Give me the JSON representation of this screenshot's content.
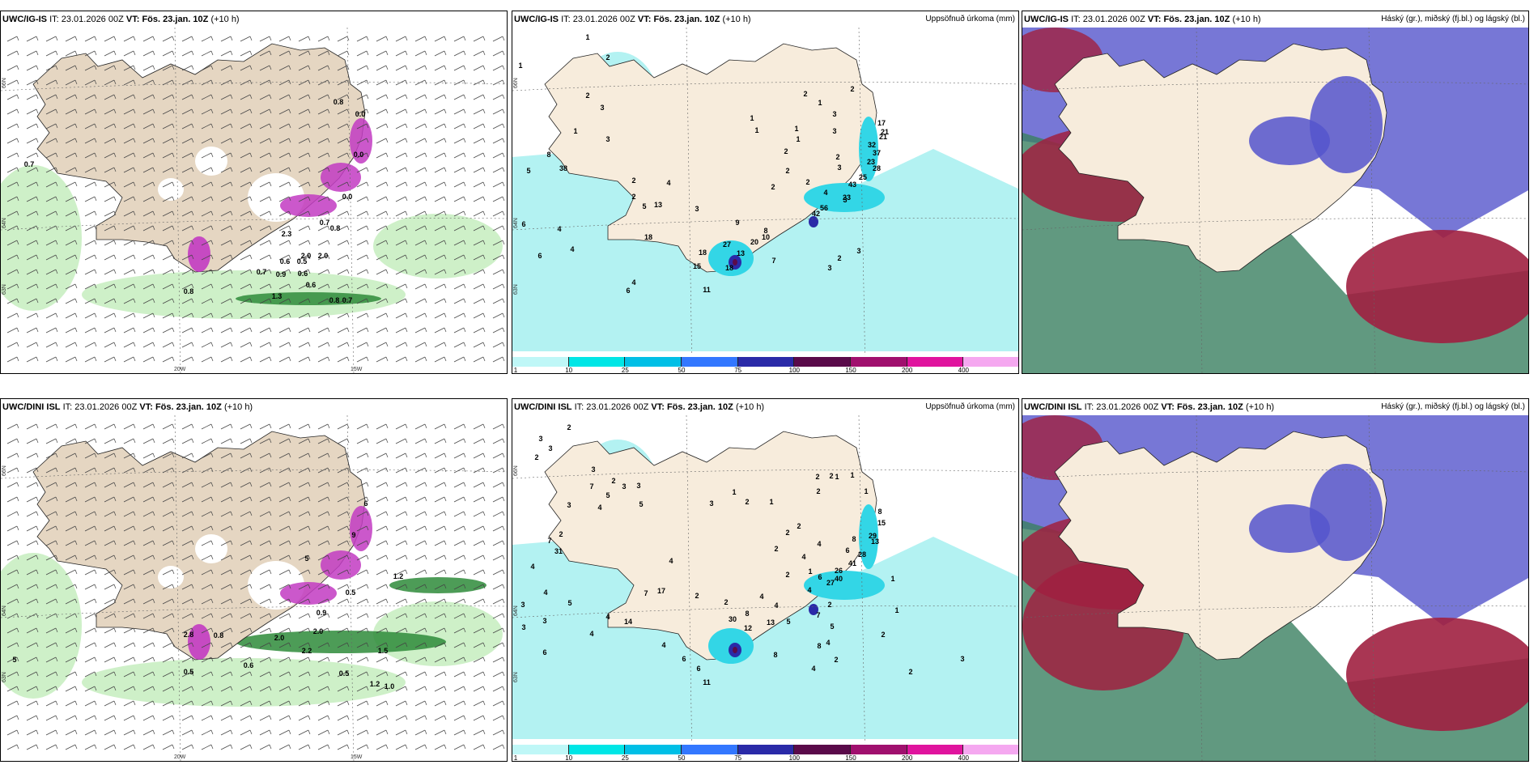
{
  "panels": [
    {
      "id": "p1",
      "model": "UWC/IG-IS",
      "it_label": "IT:",
      "it_value": "23.01.2026 00Z",
      "vt_label": "VT:",
      "vt_value": "Fös. 23.jan. 10Z",
      "lead": "(+10 h)",
      "right_title": ""
    },
    {
      "id": "p2",
      "model": "UWC/IG-IS",
      "it_label": "IT:",
      "it_value": "23.01.2026 00Z",
      "vt_label": "VT:",
      "vt_value": "Fös. 23.jan. 10Z",
      "lead": "(+10 h)",
      "right_title": "Uppsöfnuð úrkoma (mm)"
    },
    {
      "id": "p3",
      "model": "UWC/IG-IS",
      "it_label": "IT:",
      "it_value": "23.01.2026 00Z",
      "vt_label": "VT:",
      "vt_value": "Fös. 23.jan. 10Z",
      "lead": "(+10 h)",
      "right_title": "Háský (gr.), miðský (fj.bl.) og lágský (bl.)"
    },
    {
      "id": "p4",
      "model": "UWC/DINI ISL",
      "it_label": "IT:",
      "it_value": "23.01.2026 00Z",
      "vt_label": "VT:",
      "vt_value": "Fös. 23.jan. 10Z",
      "lead": "(+10 h)",
      "right_title": ""
    },
    {
      "id": "p5",
      "model": "UWC/DINI ISL",
      "it_label": "IT:",
      "it_value": "23.01.2026 00Z",
      "vt_label": "VT:",
      "vt_value": "Fös. 23.jan. 10Z",
      "lead": "(+10 h)",
      "right_title": "Uppsöfnuð úrkoma (mm)"
    },
    {
      "id": "p6",
      "model": "UWC/DINI ISL",
      "it_label": "IT:",
      "it_value": "23.01.2026 00Z",
      "vt_label": "VT:",
      "vt_value": "Fös. 23.jan. 10Z",
      "lead": "(+10 h)",
      "right_title": "Háský (gr.), miðský (fj.bl.) og lágský (bl.)"
    }
  ],
  "grid_labels": {
    "lat_66": "66N",
    "lat_64": "64N",
    "lat_63": "63N",
    "lon_20": "20W",
    "lon_15": "15W"
  },
  "colorbar": {
    "ticks": [
      "1",
      "10",
      "25",
      "50",
      "75",
      "100",
      "150",
      "200",
      "400"
    ],
    "colors": [
      "#bff7f7",
      "#00e6e6",
      "#00bfe6",
      "#3377ff",
      "#2a2aa8",
      "#5a0a4a",
      "#a0106e",
      "#e0149e",
      "#f5a8f0"
    ]
  },
  "colors": {
    "land": "#f7ecdc",
    "land_wind": "#e5d6c2",
    "precip_light": "#b3f2f2",
    "precip_med": "#33d6e6",
    "green_light": "#c9eec2",
    "green_dark": "#2e8b3a",
    "magenta": "#c23bc2",
    "cloud_red": "#a02040",
    "cloud_blue": "#5555cc",
    "cloud_green": "#3a8060"
  },
  "labels": {
    "p1": [
      {
        "x": 35,
        "y": 172,
        "t": "0.7"
      },
      {
        "x": 232,
        "y": 329,
        "t": "0.8"
      },
      {
        "x": 322,
        "y": 305,
        "t": "0.7"
      },
      {
        "x": 346,
        "y": 308,
        "t": "0.9"
      },
      {
        "x": 373,
        "y": 307,
        "t": "0.6"
      },
      {
        "x": 383,
        "y": 321,
        "t": "0.6"
      },
      {
        "x": 351,
        "y": 292,
        "t": "0.6"
      },
      {
        "x": 372,
        "y": 292,
        "t": "0.5"
      },
      {
        "x": 398,
        "y": 285,
        "t": "2.0"
      },
      {
        "x": 377,
        "y": 285,
        "t": "2.0"
      },
      {
        "x": 400,
        "y": 244,
        "t": "0.7"
      },
      {
        "x": 413,
        "y": 251,
        "t": "0.8"
      },
      {
        "x": 428,
        "y": 212,
        "t": "0.0"
      },
      {
        "x": 442,
        "y": 160,
        "t": "0.0"
      },
      {
        "x": 417,
        "y": 95,
        "t": "0.8"
      },
      {
        "x": 444,
        "y": 110,
        "t": "0.0"
      },
      {
        "x": 428,
        "y": 340,
        "t": "0.7"
      },
      {
        "x": 412,
        "y": 340,
        "t": "0.8"
      },
      {
        "x": 341,
        "y": 335,
        "t": "1.3"
      },
      {
        "x": 353,
        "y": 258,
        "t": "2.3"
      }
    ],
    "p2": [
      {
        "x": 10,
        "y": 50,
        "t": "1"
      },
      {
        "x": 93,
        "y": 15,
        "t": "1"
      },
      {
        "x": 118,
        "y": 40,
        "t": "2"
      },
      {
        "x": 93,
        "y": 87,
        "t": "2"
      },
      {
        "x": 111,
        "y": 102,
        "t": "3"
      },
      {
        "x": 78,
        "y": 131,
        "t": "1"
      },
      {
        "x": 118,
        "y": 141,
        "t": "3"
      },
      {
        "x": 45,
        "y": 160,
        "t": "8"
      },
      {
        "x": 20,
        "y": 180,
        "t": "5"
      },
      {
        "x": 63,
        "y": 177,
        "t": "38"
      },
      {
        "x": 14,
        "y": 246,
        "t": "6"
      },
      {
        "x": 58,
        "y": 252,
        "t": "4"
      },
      {
        "x": 74,
        "y": 277,
        "t": "4"
      },
      {
        "x": 34,
        "y": 285,
        "t": "6"
      },
      {
        "x": 150,
        "y": 192,
        "t": "2"
      },
      {
        "x": 193,
        "y": 195,
        "t": "4"
      },
      {
        "x": 150,
        "y": 212,
        "t": "2"
      },
      {
        "x": 163,
        "y": 224,
        "t": "5"
      },
      {
        "x": 180,
        "y": 222,
        "t": "13"
      },
      {
        "x": 228,
        "y": 227,
        "t": "3"
      },
      {
        "x": 168,
        "y": 262,
        "t": "18"
      },
      {
        "x": 278,
        "y": 244,
        "t": "9"
      },
      {
        "x": 235,
        "y": 281,
        "t": "18"
      },
      {
        "x": 265,
        "y": 271,
        "t": "27"
      },
      {
        "x": 282,
        "y": 282,
        "t": "13"
      },
      {
        "x": 299,
        "y": 268,
        "t": "20"
      },
      {
        "x": 268,
        "y": 300,
        "t": "18"
      },
      {
        "x": 228,
        "y": 298,
        "t": "15"
      },
      {
        "x": 323,
        "y": 291,
        "t": "7"
      },
      {
        "x": 313,
        "y": 262,
        "t": "10"
      },
      {
        "x": 313,
        "y": 254,
        "t": "8"
      },
      {
        "x": 322,
        "y": 200,
        "t": "2"
      },
      {
        "x": 340,
        "y": 180,
        "t": "2"
      },
      {
        "x": 150,
        "y": 318,
        "t": "4"
      },
      {
        "x": 143,
        "y": 328,
        "t": "6"
      },
      {
        "x": 240,
        "y": 327,
        "t": "11"
      },
      {
        "x": 338,
        "y": 156,
        "t": "2"
      },
      {
        "x": 353,
        "y": 141,
        "t": "1"
      },
      {
        "x": 351,
        "y": 128,
        "t": "1"
      },
      {
        "x": 365,
        "y": 194,
        "t": "2"
      },
      {
        "x": 380,
        "y": 96,
        "t": "1"
      },
      {
        "x": 362,
        "y": 85,
        "t": "2"
      },
      {
        "x": 398,
        "y": 131,
        "t": "3"
      },
      {
        "x": 402,
        "y": 163,
        "t": "2"
      },
      {
        "x": 411,
        "y": 216,
        "t": "3"
      },
      {
        "x": 428,
        "y": 279,
        "t": "3"
      },
      {
        "x": 404,
        "y": 288,
        "t": "2"
      },
      {
        "x": 392,
        "y": 300,
        "t": "3"
      },
      {
        "x": 420,
        "y": 79,
        "t": "2"
      },
      {
        "x": 398,
        "y": 110,
        "t": "3"
      },
      {
        "x": 456,
        "y": 121,
        "t": "17"
      },
      {
        "x": 460,
        "y": 132,
        "t": "21"
      },
      {
        "x": 458,
        "y": 138,
        "t": "21"
      },
      {
        "x": 444,
        "y": 148,
        "t": "32"
      },
      {
        "x": 450,
        "y": 158,
        "t": "37"
      },
      {
        "x": 443,
        "y": 169,
        "t": "23"
      },
      {
        "x": 450,
        "y": 177,
        "t": "28"
      },
      {
        "x": 433,
        "y": 188,
        "t": "25"
      },
      {
        "x": 420,
        "y": 197,
        "t": "43"
      },
      {
        "x": 413,
        "y": 213,
        "t": "23"
      },
      {
        "x": 404,
        "y": 176,
        "t": "3"
      },
      {
        "x": 385,
        "y": 226,
        "t": "56"
      },
      {
        "x": 375,
        "y": 233,
        "t": "42"
      },
      {
        "x": 387,
        "y": 207,
        "t": "4"
      },
      {
        "x": 296,
        "y": 115,
        "t": "1"
      },
      {
        "x": 302,
        "y": 130,
        "t": "1"
      }
    ],
    "p4": [
      {
        "x": 17,
        "y": 305,
        "t": "5"
      },
      {
        "x": 232,
        "y": 320,
        "t": "0.5"
      },
      {
        "x": 306,
        "y": 312,
        "t": "0.6"
      },
      {
        "x": 232,
        "y": 274,
        "t": "2.8"
      },
      {
        "x": 344,
        "y": 278,
        "t": "2.0"
      },
      {
        "x": 392,
        "y": 270,
        "t": "2.0"
      },
      {
        "x": 378,
        "y": 294,
        "t": "2.2"
      },
      {
        "x": 472,
        "y": 294,
        "t": "1.5"
      },
      {
        "x": 424,
        "y": 322,
        "t": "0.5"
      },
      {
        "x": 396,
        "y": 247,
        "t": "0.9"
      },
      {
        "x": 432,
        "y": 222,
        "t": "0.5"
      },
      {
        "x": 491,
        "y": 202,
        "t": "1.2"
      },
      {
        "x": 462,
        "y": 335,
        "t": "1.2"
      },
      {
        "x": 480,
        "y": 338,
        "t": "1.0"
      },
      {
        "x": 378,
        "y": 180,
        "t": "5"
      },
      {
        "x": 436,
        "y": 151,
        "t": "9"
      },
      {
        "x": 451,
        "y": 112,
        "t": "6"
      },
      {
        "x": 269,
        "y": 275,
        "t": "0.8"
      }
    ],
    "p5": [
      {
        "x": 70,
        "y": 18,
        "t": "2"
      },
      {
        "x": 47,
        "y": 44,
        "t": "3"
      },
      {
        "x": 35,
        "y": 32,
        "t": "3"
      },
      {
        "x": 30,
        "y": 55,
        "t": "2"
      },
      {
        "x": 100,
        "y": 70,
        "t": "3"
      },
      {
        "x": 125,
        "y": 84,
        "t": "2"
      },
      {
        "x": 98,
        "y": 91,
        "t": "7"
      },
      {
        "x": 118,
        "y": 102,
        "t": "5"
      },
      {
        "x": 138,
        "y": 91,
        "t": "3"
      },
      {
        "x": 156,
        "y": 90,
        "t": "3"
      },
      {
        "x": 159,
        "y": 113,
        "t": "5"
      },
      {
        "x": 70,
        "y": 114,
        "t": "3"
      },
      {
        "x": 108,
        "y": 117,
        "t": "4"
      },
      {
        "x": 46,
        "y": 158,
        "t": "7"
      },
      {
        "x": 60,
        "y": 150,
        "t": "2"
      },
      {
        "x": 57,
        "y": 171,
        "t": "31"
      },
      {
        "x": 25,
        "y": 190,
        "t": "4"
      },
      {
        "x": 41,
        "y": 222,
        "t": "4"
      },
      {
        "x": 13,
        "y": 237,
        "t": "3"
      },
      {
        "x": 14,
        "y": 265,
        "t": "3"
      },
      {
        "x": 40,
        "y": 257,
        "t": "3"
      },
      {
        "x": 40,
        "y": 296,
        "t": "6"
      },
      {
        "x": 71,
        "y": 235,
        "t": "5"
      },
      {
        "x": 118,
        "y": 252,
        "t": "4"
      },
      {
        "x": 98,
        "y": 273,
        "t": "4"
      },
      {
        "x": 143,
        "y": 258,
        "t": "14"
      },
      {
        "x": 187,
        "y": 287,
        "t": "4"
      },
      {
        "x": 212,
        "y": 304,
        "t": "6"
      },
      {
        "x": 230,
        "y": 316,
        "t": "6"
      },
      {
        "x": 240,
        "y": 333,
        "t": "11"
      },
      {
        "x": 165,
        "y": 223,
        "t": "7"
      },
      {
        "x": 184,
        "y": 220,
        "t": "17"
      },
      {
        "x": 228,
        "y": 226,
        "t": "2"
      },
      {
        "x": 264,
        "y": 234,
        "t": "2"
      },
      {
        "x": 290,
        "y": 248,
        "t": "8"
      },
      {
        "x": 272,
        "y": 255,
        "t": "30"
      },
      {
        "x": 291,
        "y": 266,
        "t": "12"
      },
      {
        "x": 319,
        "y": 259,
        "t": "13"
      },
      {
        "x": 325,
        "y": 299,
        "t": "8"
      },
      {
        "x": 308,
        "y": 227,
        "t": "4"
      },
      {
        "x": 326,
        "y": 238,
        "t": "4"
      },
      {
        "x": 341,
        "y": 258,
        "t": "5"
      },
      {
        "x": 392,
        "y": 237,
        "t": "2"
      },
      {
        "x": 395,
        "y": 264,
        "t": "5"
      },
      {
        "x": 390,
        "y": 284,
        "t": "4"
      },
      {
        "x": 400,
        "y": 305,
        "t": "2"
      },
      {
        "x": 372,
        "y": 316,
        "t": "4"
      },
      {
        "x": 340,
        "y": 200,
        "t": "2"
      },
      {
        "x": 360,
        "y": 178,
        "t": "4"
      },
      {
        "x": 379,
        "y": 162,
        "t": "4"
      },
      {
        "x": 326,
        "y": 168,
        "t": "2"
      },
      {
        "x": 340,
        "y": 148,
        "t": "2"
      },
      {
        "x": 354,
        "y": 140,
        "t": "2"
      },
      {
        "x": 320,
        "y": 110,
        "t": "1"
      },
      {
        "x": 290,
        "y": 110,
        "t": "2"
      },
      {
        "x": 274,
        "y": 98,
        "t": "1"
      },
      {
        "x": 246,
        "y": 112,
        "t": "3"
      },
      {
        "x": 196,
        "y": 183,
        "t": "4"
      },
      {
        "x": 368,
        "y": 196,
        "t": "1"
      },
      {
        "x": 380,
        "y": 203,
        "t": "6"
      },
      {
        "x": 403,
        "y": 205,
        "t": "40"
      },
      {
        "x": 393,
        "y": 210,
        "t": "27"
      },
      {
        "x": 403,
        "y": 195,
        "t": "26"
      },
      {
        "x": 420,
        "y": 186,
        "t": "41"
      },
      {
        "x": 432,
        "y": 175,
        "t": "28"
      },
      {
        "x": 414,
        "y": 170,
        "t": "6"
      },
      {
        "x": 422,
        "y": 156,
        "t": "8"
      },
      {
        "x": 445,
        "y": 152,
        "t": "29"
      },
      {
        "x": 448,
        "y": 159,
        "t": "13"
      },
      {
        "x": 454,
        "y": 122,
        "t": "8"
      },
      {
        "x": 456,
        "y": 136,
        "t": "15"
      },
      {
        "x": 437,
        "y": 97,
        "t": "1"
      },
      {
        "x": 401,
        "y": 79,
        "t": "1"
      },
      {
        "x": 377,
        "y": 79,
        "t": "2"
      },
      {
        "x": 378,
        "y": 97,
        "t": "2"
      },
      {
        "x": 420,
        "y": 77,
        "t": "1"
      },
      {
        "x": 394,
        "y": 78,
        "t": "2"
      },
      {
        "x": 458,
        "y": 274,
        "t": "2"
      },
      {
        "x": 470,
        "y": 205,
        "t": "1"
      },
      {
        "x": 475,
        "y": 244,
        "t": "1"
      },
      {
        "x": 556,
        "y": 304,
        "t": "3"
      },
      {
        "x": 492,
        "y": 320,
        "t": "2"
      },
      {
        "x": 379,
        "y": 288,
        "t": "8"
      },
      {
        "x": 378,
        "y": 250,
        "t": "7"
      },
      {
        "x": 367,
        "y": 219,
        "t": "4"
      }
    ]
  }
}
